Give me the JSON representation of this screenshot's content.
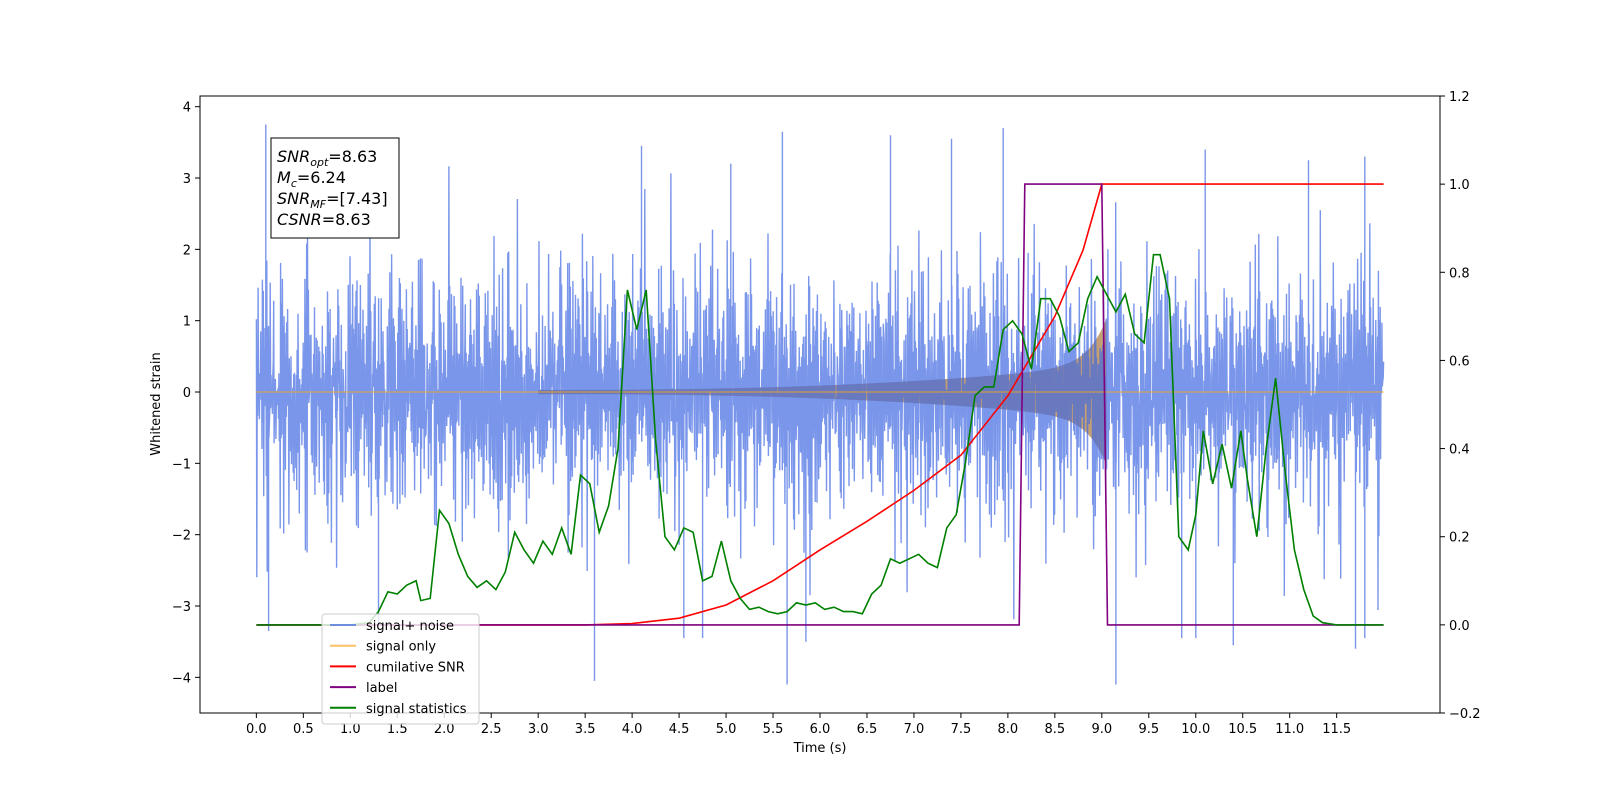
{
  "chart_data": {
    "type": "line",
    "title": "",
    "xlabel": "Time (s)",
    "ylabel": "Whitened strain",
    "y2label": "",
    "xlim": [
      -0.6,
      12.6
    ],
    "ylim": [
      -4.5,
      4.15
    ],
    "y2lim": [
      -0.2,
      1.2
    ],
    "xticks": [
      0.0,
      0.5,
      1.0,
      1.5,
      2.0,
      2.5,
      3.0,
      3.5,
      4.0,
      4.5,
      5.0,
      5.5,
      6.0,
      6.5,
      7.0,
      7.5,
      8.0,
      8.5,
      9.0,
      9.5,
      10.0,
      10.5,
      11.0,
      11.5
    ],
    "xtick_labels": [
      "0.0",
      "0.5",
      "1.0",
      "1.5",
      "2.0",
      "2.5",
      "3.0",
      "3.5",
      "4.0",
      "4.5",
      "5.0",
      "5.5",
      "6.0",
      "6.5",
      "7.0",
      "7.5",
      "8.0",
      "8.5",
      "9.0",
      "9.5",
      "10.0",
      "10.5",
      "11.0",
      "11.5"
    ],
    "yticks": [
      -4,
      -3,
      -2,
      -1,
      0,
      1,
      2,
      3,
      4
    ],
    "ytick_labels": [
      "−4",
      "−3",
      "−2",
      "−1",
      "0",
      "1",
      "2",
      "3",
      "4"
    ],
    "y2ticks": [
      -0.2,
      0.0,
      0.2,
      0.4,
      0.6,
      0.8,
      1.0,
      1.2
    ],
    "y2tick_labels": [
      "−0.2",
      "0.0",
      "0.2",
      "0.4",
      "0.6",
      "0.8",
      "1.0",
      "1.2"
    ],
    "grid": false,
    "legend_position": "lower-left",
    "annotation": [
      {
        "main": "SNR",
        "sub": "opt",
        "rest": "=8.63"
      },
      {
        "main": "M",
        "sub": "c",
        "rest": "=6.24"
      },
      {
        "main": "SNR",
        "sub": "MF",
        "rest": "=[7.43]"
      },
      {
        "main": "CSNR",
        "sub": "",
        "rest": "=8.63"
      }
    ],
    "series": [
      {
        "name": "signal+ noise",
        "axis": "left",
        "color": "#4169e1",
        "opacity": 0.7,
        "x_range": [
          0.0,
          12.0
        ],
        "noise_sigma": 0.85,
        "envelope": "chirp",
        "spikes": [
          [
            0.1,
            3.75
          ],
          [
            0.13,
            -3.35
          ],
          [
            1.3,
            -3.3
          ],
          [
            3.6,
            -4.05
          ],
          [
            4.1,
            3.45
          ],
          [
            4.55,
            -3.45
          ],
          [
            4.75,
            -3.45
          ],
          [
            5.05,
            3.2
          ],
          [
            5.65,
            -4.1
          ],
          [
            5.85,
            -3.5
          ],
          [
            5.6,
            3.65
          ],
          [
            6.75,
            3.6
          ],
          [
            7.4,
            3.55
          ],
          [
            7.95,
            3.7
          ],
          [
            9.15,
            -4.1
          ],
          [
            9.85,
            -3.45
          ],
          [
            10.0,
            -3.45
          ],
          [
            10.1,
            3.4
          ],
          [
            10.4,
            -3.55
          ],
          [
            11.2,
            3.25
          ],
          [
            11.7,
            -3.6
          ],
          [
            11.8,
            -3.45
          ],
          [
            11.8,
            3.3
          ]
        ]
      },
      {
        "name": "signal only",
        "axis": "left",
        "color": "#f5a623",
        "opacity": 0.7,
        "x_range": [
          0.0,
          12.0
        ],
        "chirp": {
          "start": 3.0,
          "end": 9.05,
          "a0": 0.01,
          "a1": 1.0,
          "power": 2.4
        }
      },
      {
        "name": "cumilative SNR",
        "axis": "right",
        "color": "#ff0000",
        "points": [
          [
            0.0,
            0.0
          ],
          [
            3.5,
            0.0
          ],
          [
            4.0,
            0.003
          ],
          [
            4.5,
            0.015
          ],
          [
            5.0,
            0.045
          ],
          [
            5.5,
            0.1
          ],
          [
            6.0,
            0.17
          ],
          [
            6.5,
            0.235
          ],
          [
            7.0,
            0.305
          ],
          [
            7.5,
            0.385
          ],
          [
            8.0,
            0.52
          ],
          [
            8.5,
            0.7
          ],
          [
            8.8,
            0.85
          ],
          [
            9.0,
            1.0
          ],
          [
            12.0,
            1.0
          ]
        ]
      },
      {
        "name": "label",
        "axis": "right",
        "color": "#800080",
        "points": [
          [
            0.0,
            0.0
          ],
          [
            8.12,
            0.0
          ],
          [
            8.18,
            1.0
          ],
          [
            9.0,
            1.0
          ],
          [
            9.06,
            0.0
          ],
          [
            12.0,
            0.0
          ]
        ]
      },
      {
        "name": "signal statistics",
        "axis": "right",
        "color": "#008000",
        "points": [
          [
            0.0,
            0.0
          ],
          [
            1.0,
            0.0
          ],
          [
            1.2,
            0.005
          ],
          [
            1.3,
            0.03
          ],
          [
            1.4,
            0.075
          ],
          [
            1.5,
            0.07
          ],
          [
            1.6,
            0.09
          ],
          [
            1.7,
            0.1
          ],
          [
            1.75,
            0.055
          ],
          [
            1.85,
            0.06
          ],
          [
            1.95,
            0.26
          ],
          [
            2.05,
            0.23
          ],
          [
            2.15,
            0.16
          ],
          [
            2.25,
            0.11
          ],
          [
            2.35,
            0.085
          ],
          [
            2.45,
            0.1
          ],
          [
            2.55,
            0.08
          ],
          [
            2.65,
            0.12
          ],
          [
            2.75,
            0.21
          ],
          [
            2.85,
            0.17
          ],
          [
            2.95,
            0.14
          ],
          [
            3.05,
            0.19
          ],
          [
            3.15,
            0.16
          ],
          [
            3.25,
            0.22
          ],
          [
            3.35,
            0.16
          ],
          [
            3.45,
            0.34
          ],
          [
            3.55,
            0.32
          ],
          [
            3.65,
            0.21
          ],
          [
            3.75,
            0.27
          ],
          [
            3.85,
            0.4
          ],
          [
            3.95,
            0.76
          ],
          [
            4.05,
            0.67
          ],
          [
            4.15,
            0.76
          ],
          [
            4.25,
            0.42
          ],
          [
            4.35,
            0.2
          ],
          [
            4.45,
            0.17
          ],
          [
            4.55,
            0.22
          ],
          [
            4.65,
            0.21
          ],
          [
            4.75,
            0.1
          ],
          [
            4.85,
            0.11
          ],
          [
            4.95,
            0.19
          ],
          [
            5.05,
            0.1
          ],
          [
            5.15,
            0.06
          ],
          [
            5.25,
            0.035
          ],
          [
            5.35,
            0.04
          ],
          [
            5.45,
            0.03
          ],
          [
            5.55,
            0.025
          ],
          [
            5.65,
            0.03
          ],
          [
            5.75,
            0.05
          ],
          [
            5.85,
            0.045
          ],
          [
            5.95,
            0.05
          ],
          [
            6.05,
            0.035
          ],
          [
            6.15,
            0.04
          ],
          [
            6.25,
            0.03
          ],
          [
            6.35,
            0.03
          ],
          [
            6.45,
            0.025
          ],
          [
            6.55,
            0.07
          ],
          [
            6.65,
            0.09
          ],
          [
            6.75,
            0.15
          ],
          [
            6.85,
            0.14
          ],
          [
            6.95,
            0.15
          ],
          [
            7.05,
            0.16
          ],
          [
            7.15,
            0.14
          ],
          [
            7.25,
            0.13
          ],
          [
            7.35,
            0.22
          ],
          [
            7.45,
            0.25
          ],
          [
            7.55,
            0.37
          ],
          [
            7.65,
            0.52
          ],
          [
            7.75,
            0.54
          ],
          [
            7.85,
            0.54
          ],
          [
            7.95,
            0.67
          ],
          [
            8.05,
            0.69
          ],
          [
            8.15,
            0.66
          ],
          [
            8.25,
            0.58
          ],
          [
            8.35,
            0.74
          ],
          [
            8.45,
            0.74
          ],
          [
            8.55,
            0.7
          ],
          [
            8.65,
            0.62
          ],
          [
            8.75,
            0.64
          ],
          [
            8.85,
            0.74
          ],
          [
            8.95,
            0.79
          ],
          [
            9.05,
            0.75
          ],
          [
            9.15,
            0.71
          ],
          [
            9.25,
            0.75
          ],
          [
            9.35,
            0.66
          ],
          [
            9.45,
            0.64
          ],
          [
            9.55,
            0.84
          ],
          [
            9.62,
            0.84
          ],
          [
            9.72,
            0.74
          ],
          [
            9.82,
            0.2
          ],
          [
            9.92,
            0.17
          ],
          [
            10.0,
            0.25
          ],
          [
            10.08,
            0.44
          ],
          [
            10.18,
            0.32
          ],
          [
            10.28,
            0.41
          ],
          [
            10.38,
            0.31
          ],
          [
            10.48,
            0.44
          ],
          [
            10.55,
            0.33
          ],
          [
            10.65,
            0.2
          ],
          [
            10.75,
            0.4
          ],
          [
            10.85,
            0.56
          ],
          [
            10.95,
            0.35
          ],
          [
            11.05,
            0.17
          ],
          [
            11.15,
            0.08
          ],
          [
            11.25,
            0.02
          ],
          [
            11.35,
            0.005
          ],
          [
            11.5,
            0.0
          ],
          [
            12.0,
            0.0
          ]
        ]
      }
    ],
    "legend": [
      {
        "label": "signal+ noise",
        "color": "#4169e1",
        "opacity": 0.7
      },
      {
        "label": "signal only",
        "color": "#f5a623",
        "opacity": 0.7
      },
      {
        "label": "cumilative SNR",
        "color": "#ff0000",
        "opacity": 1
      },
      {
        "label": "label",
        "color": "#800080",
        "opacity": 1
      },
      {
        "label": "signal statistics",
        "color": "#008000",
        "opacity": 1
      }
    ]
  }
}
